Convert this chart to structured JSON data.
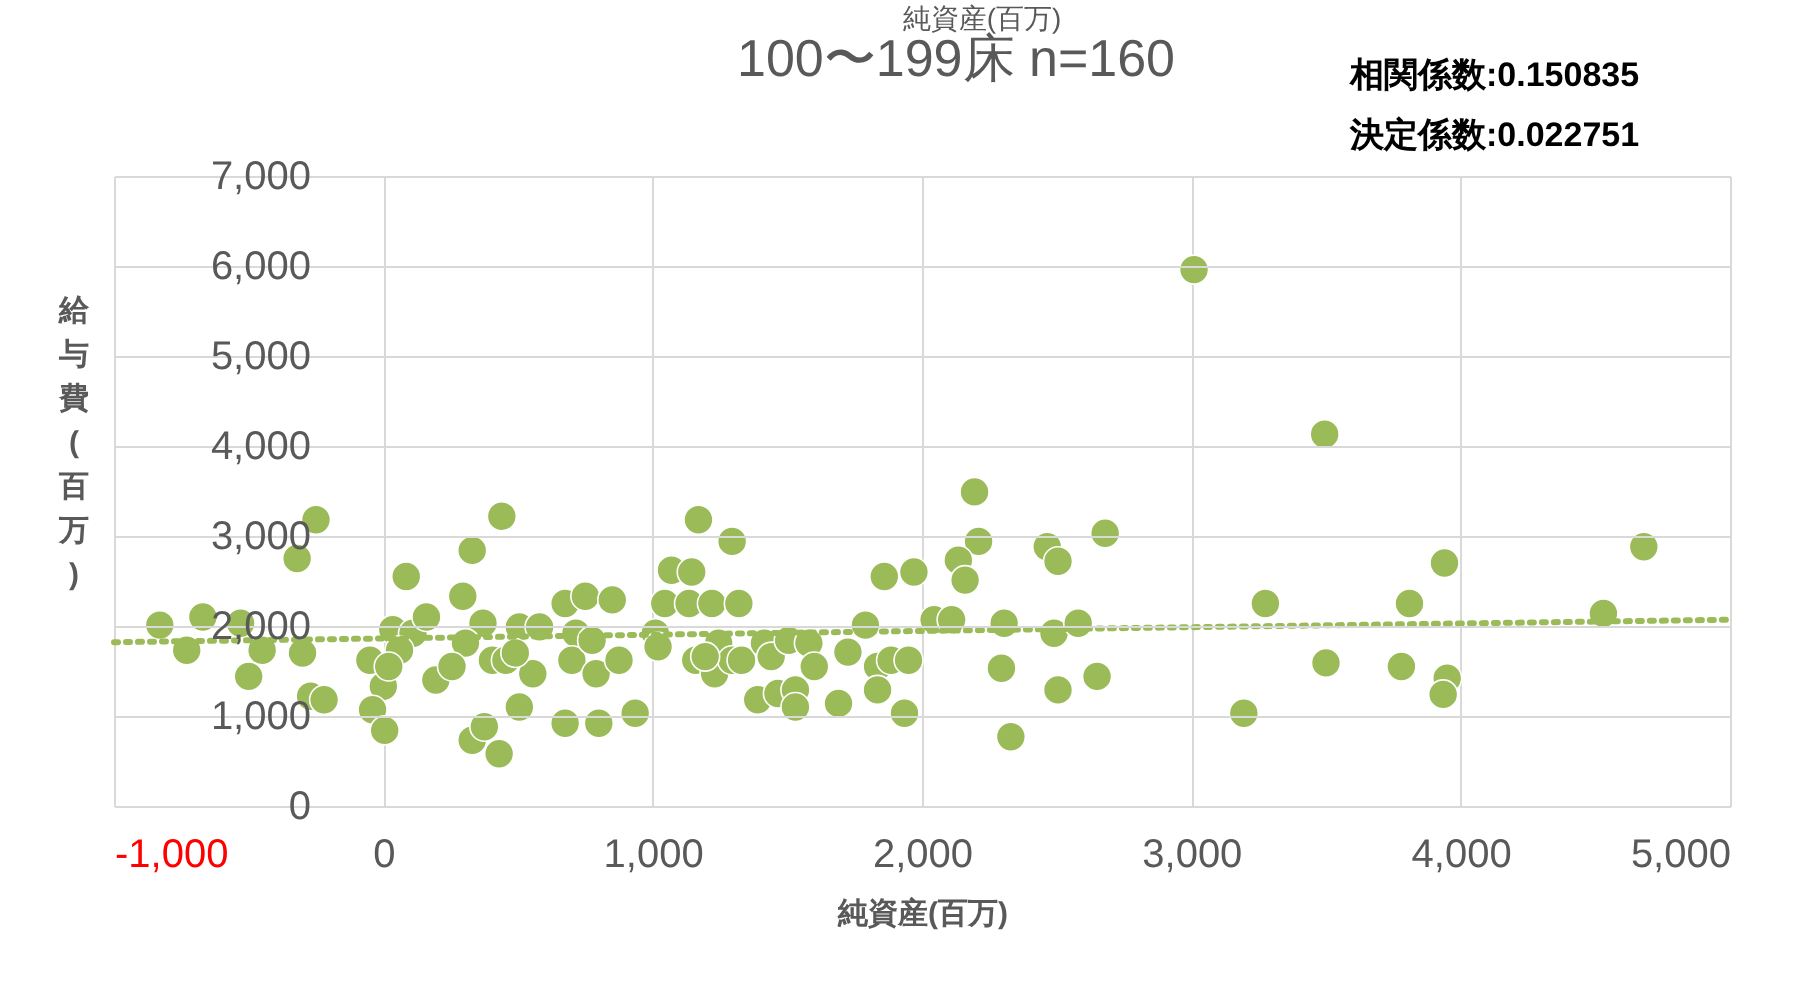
{
  "chart_data": {
    "type": "scatter",
    "title": "100〜199床 n=160",
    "xlabel": "純資産(百万)",
    "ylabel": "給与費(百万)",
    "annotations": [
      "純資産(百万)",
      "相関係数:0.150835",
      "決定係数:0.022751"
    ],
    "xlim": [
      -1000,
      5000
    ],
    "ylim": [
      0,
      7000
    ],
    "xticks": [
      {
        "value": -1000,
        "label": "-1,000"
      },
      0,
      {
        "value": 1000,
        "label": "1,000"
      },
      {
        "value": 2000,
        "label": "2,000"
      },
      {
        "value": 3000,
        "label": "3,000"
      },
      {
        "value": 4000,
        "label": "4,000"
      },
      {
        "value": 5000,
        "label": "5,000"
      }
    ],
    "yticks": [
      0,
      {
        "value": 1000,
        "label": "1,000"
      },
      {
        "value": 2000,
        "label": "2,000"
      },
      {
        "value": 3000,
        "label": "3,000"
      },
      {
        "value": 4000,
        "label": "4,000"
      },
      {
        "value": 5000,
        "label": "5,000"
      },
      {
        "value": 6000,
        "label": "6,000"
      },
      {
        "value": 7000,
        "label": "7,000"
      }
    ],
    "grid": true,
    "series": [
      {
        "marker": "circle",
        "color": "#9bbb59",
        "x": [
          -250,
          -320,
          -830,
          -670,
          -730,
          -530,
          -450,
          -300,
          -500,
          -270,
          -220,
          -50,
          0,
          -40,
          5,
          35,
          85,
          110,
          160,
          60,
          20,
          195,
          295,
          330,
          440,
          330,
          375,
          430,
          505,
          370,
          305,
          255,
          405,
          505,
          580,
          455,
          555,
          490,
          675,
          750,
          850,
          715,
          700,
          790,
          875,
          775,
          675,
          800,
          935,
          1045,
          1070,
          1170,
          1295,
          1145,
          1135,
          1220,
          1320,
          1010,
          1020,
          1160,
          1245,
          1230,
          1295,
          1330,
          1195,
          1415,
          1440,
          1505,
          1580,
          1600,
          1390,
          1465,
          1530,
          1530,
          1690,
          1725,
          1790,
          1860,
          1970,
          1835,
          1885,
          1950,
          1835,
          1935,
          2045,
          2110,
          2195,
          2210,
          2135,
          2160,
          2305,
          2295,
          2330,
          2465,
          2505,
          2490,
          2580,
          2505,
          2650,
          2680,
          3010,
          3495,
          3275,
          3810,
          3940,
          3500,
          3780,
          3950,
          3935,
          3195,
          4530,
          4680
        ],
        "values": [
          3180,
          2750,
          2010,
          2100,
          1730,
          2030,
          1730,
          1700,
          1440,
          1220,
          1180,
          1620,
          1330,
          1070,
          840,
          1960,
          2550,
          1920,
          2100,
          1730,
          1550,
          1400,
          2330,
          2840,
          3220,
          730,
          880,
          580,
          1100,
          2030,
          1810,
          1550,
          1620,
          1990,
          1990,
          1620,
          1470,
          1700,
          2250,
          2330,
          2290,
          1920,
          1620,
          1470,
          1620,
          1840,
          920,
          920,
          1030,
          2250,
          2620,
          3180,
          2940,
          2600,
          2250,
          2250,
          2250,
          1920,
          1770,
          1620,
          1810,
          1470,
          1620,
          1620,
          1660,
          1810,
          1660,
          1840,
          1810,
          1550,
          1180,
          1250,
          1290,
          1100,
          1140,
          1710,
          2010,
          2550,
          2600,
          1550,
          1620,
          1620,
          1290,
          1030,
          2070,
          2070,
          3490,
          2940,
          2730,
          2510,
          2030,
          1530,
          770,
          2880,
          2720,
          1920,
          2030,
          1290,
          1440,
          3030,
          5960,
          4130,
          2250,
          2250,
          2700,
          1590,
          1550,
          1420,
          1240,
          1030,
          2140,
          2880
        ]
      },
      {
        "type": "line",
        "marker": "none",
        "color": "#9bbb59",
        "line_style": "dotted",
        "x": [
          -1000,
          5000
        ],
        "values": [
          1820,
          2070
        ]
      }
    ]
  }
}
